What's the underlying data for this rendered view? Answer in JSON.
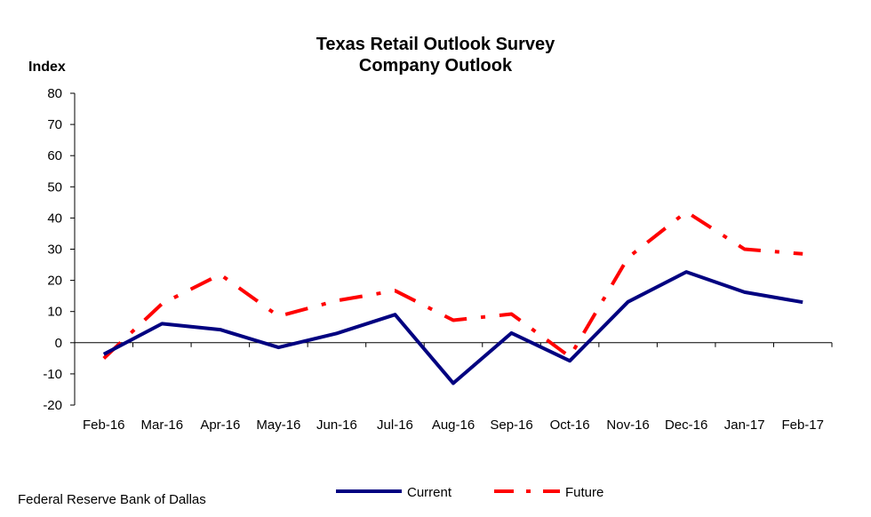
{
  "chart_data": {
    "type": "line",
    "title_lines": [
      "Texas Retail Outlook Survey",
      "Company Outlook"
    ],
    "ylabel": "Index",
    "xlabel": "",
    "ylim": [
      -20,
      80
    ],
    "yticks": [
      -20,
      -10,
      0,
      10,
      20,
      30,
      40,
      50,
      60,
      70,
      80
    ],
    "categories": [
      "Feb-16",
      "Mar-16",
      "Apr-16",
      "May-16",
      "Jun-16",
      "Jul-16",
      "Aug-16",
      "Sep-16",
      "Oct-16",
      "Nov-16",
      "Dec-16",
      "Jan-17",
      "Feb-17"
    ],
    "series": [
      {
        "name": "Current",
        "color": "#000080",
        "style": "solid",
        "values": [
          -3.7,
          6.1,
          4.2,
          -1.5,
          3.0,
          9.0,
          -13.0,
          3.1,
          -5.8,
          13.1,
          22.7,
          16.2,
          13.0
        ]
      },
      {
        "name": "Future",
        "color": "#ff0000",
        "style": "dash-dot",
        "values": [
          -5.0,
          12.5,
          21.9,
          8.5,
          13.5,
          16.7,
          7.2,
          9.2,
          -4.5,
          27.3,
          42.0,
          30.0,
          28.5
        ]
      }
    ],
    "grid": false,
    "legend_position": "bottom"
  },
  "footer": {
    "source": "Federal Reserve Bank of Dallas"
  }
}
